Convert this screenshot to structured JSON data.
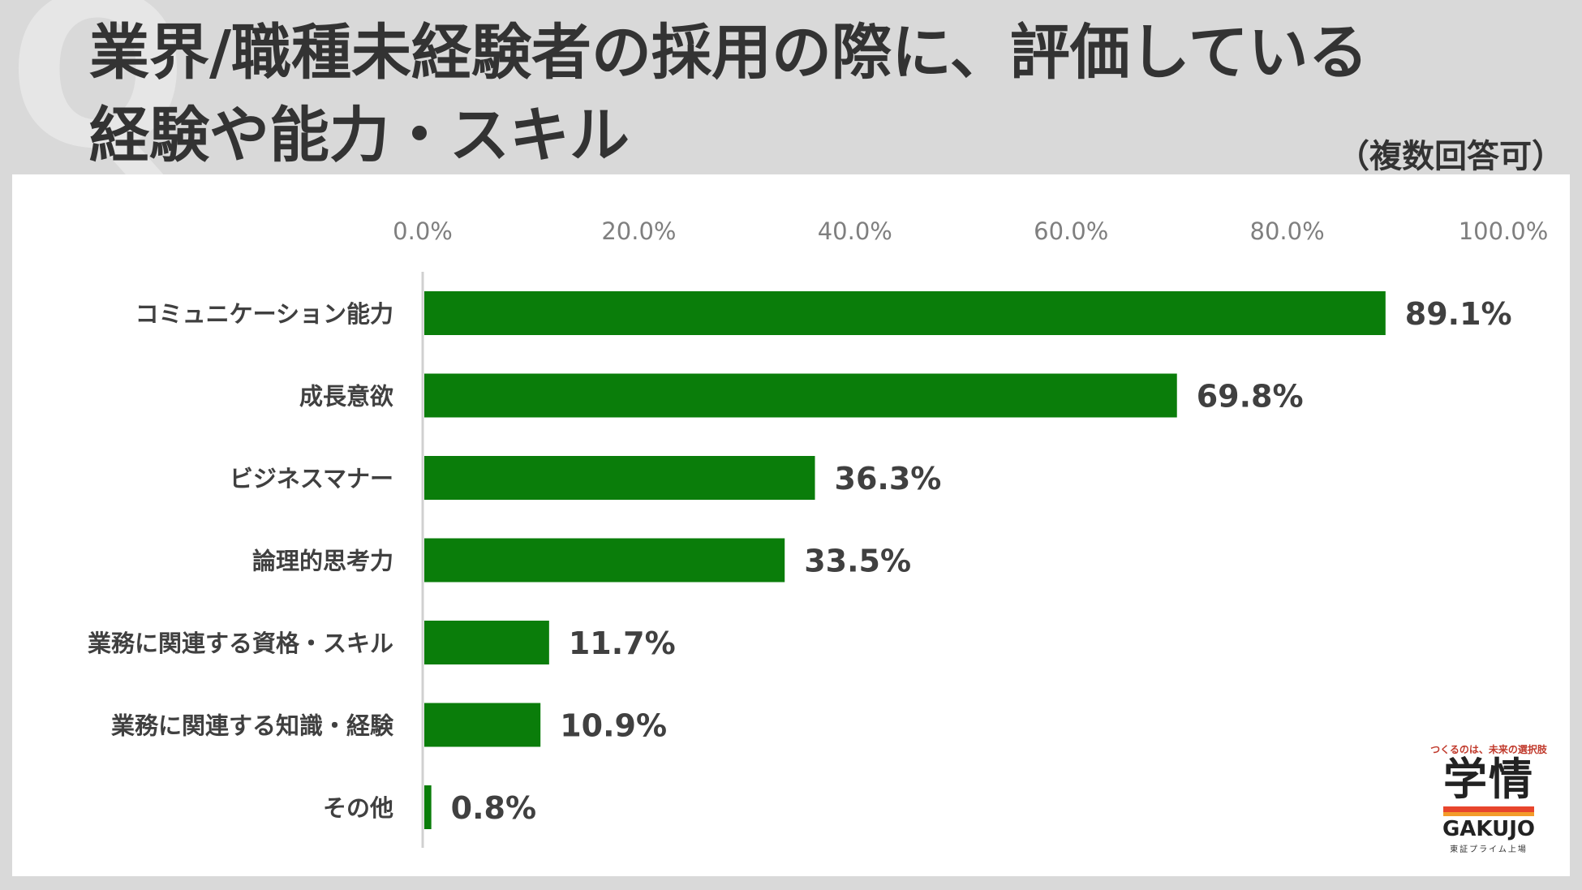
{
  "header": {
    "q_mark": "Q",
    "title_line1": "業界/職種未経験者の採用の際に、評価している",
    "title_line2": "経験や能力・スキル",
    "note": "（複数回答可）"
  },
  "chart_data": {
    "type": "bar",
    "orientation": "horizontal",
    "categories": [
      "コミュニケーション能力",
      "成長意欲",
      "ビジネスマナー",
      "論理的思考力",
      "業務に関連する資格・スキル",
      "業務に関連する知識・経験",
      "その他"
    ],
    "values": [
      89.1,
      69.8,
      36.3,
      33.5,
      11.7,
      10.9,
      0.8
    ],
    "value_labels": [
      "89.1%",
      "69.8%",
      "36.3%",
      "33.5%",
      "11.7%",
      "10.9%",
      "0.8%"
    ],
    "xlim": [
      0,
      100
    ],
    "x_ticks": [
      "0.0%",
      "20.0%",
      "40.0%",
      "60.0%",
      "80.0%",
      "100.0%"
    ],
    "axis_position": "top",
    "grid": false,
    "bar_color": "#0a7d0a"
  },
  "logo": {
    "tagline": "つくるのは、未来の選択肢",
    "name_kanji": "学情",
    "name_en": "GAKUJO",
    "sub": "東証プライム上場"
  }
}
